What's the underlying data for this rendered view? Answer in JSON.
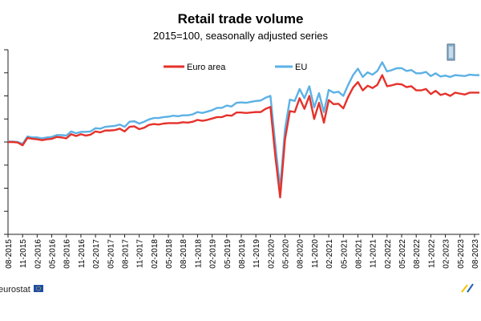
{
  "chart_data": {
    "type": "line",
    "title": "Retail trade volume",
    "subtitle": "2015=100, seasonally adjusted series",
    "xlabel": "",
    "ylabel": "",
    "x": [
      "08-2015",
      "09-2015",
      "10-2015",
      "11-2015",
      "12-2015",
      "01-2016",
      "02-2016",
      "03-2016",
      "04-2016",
      "05-2016",
      "06-2016",
      "07-2016",
      "08-2016",
      "09-2016",
      "10-2016",
      "11-2016",
      "12-2016",
      "01-2017",
      "02-2017",
      "03-2017",
      "04-2017",
      "05-2017",
      "06-2017",
      "07-2017",
      "08-2017",
      "09-2017",
      "10-2017",
      "11-2017",
      "12-2017",
      "01-2018",
      "02-2018",
      "03-2018",
      "04-2018",
      "05-2018",
      "06-2018",
      "07-2018",
      "08-2018",
      "09-2018",
      "10-2018",
      "11-2018",
      "12-2018",
      "01-2019",
      "02-2019",
      "03-2019",
      "04-2019",
      "05-2019",
      "06-2019",
      "07-2019",
      "08-2019",
      "09-2019",
      "10-2019",
      "11-2019",
      "12-2019",
      "01-2020",
      "02-2020",
      "03-2020",
      "04-2020",
      "05-2020",
      "06-2020",
      "07-2020",
      "08-2020",
      "09-2020",
      "10-2020",
      "11-2020",
      "12-2020",
      "01-2021",
      "02-2021",
      "03-2021",
      "04-2021",
      "05-2021",
      "06-2021",
      "07-2021",
      "08-2021",
      "09-2021",
      "10-2021",
      "11-2021",
      "12-2021",
      "01-2022",
      "02-2022",
      "03-2022",
      "04-2022",
      "05-2022",
      "06-2022",
      "07-2022",
      "08-2022",
      "09-2022",
      "10-2022",
      "11-2022",
      "12-2022",
      "01-2023",
      "02-2023",
      "03-2023",
      "04-2023",
      "05-2023",
      "06-2023",
      "07-2023",
      "08-2023",
      "09-2023"
    ],
    "x_tick_labels": [
      "08-2015",
      "11-2015",
      "02-2016",
      "05-2016",
      "08-2016",
      "11-2016",
      "02-2017",
      "05-2017",
      "08-2017",
      "11-2017",
      "02-2018",
      "05-2018",
      "08-2018",
      "11-2018",
      "02-2019",
      "05-2019",
      "08-2019",
      "11-2019",
      "02-2020",
      "05-2020",
      "08-2020",
      "11-2020",
      "02-2021",
      "05-2021",
      "08-2021",
      "11-2021",
      "02-2022",
      "05-2022",
      "08-2022",
      "11-2022",
      "02-2023",
      "05-2023",
      "08-2023"
    ],
    "ylim": [
      80,
      120
    ],
    "y_tick_step": 5,
    "grid": false,
    "legend_position": "top-center",
    "series": [
      {
        "name": "Euro area",
        "color": "#e5322b",
        "values": [
          100.0,
          100.0,
          99.9,
          99.3,
          100.9,
          100.7,
          100.6,
          100.4,
          100.6,
          100.7,
          101.1,
          101.0,
          100.8,
          101.7,
          101.3,
          101.7,
          101.4,
          101.6,
          102.3,
          102.1,
          102.5,
          102.5,
          102.6,
          102.9,
          102.3,
          103.3,
          103.4,
          102.8,
          103.1,
          103.7,
          103.9,
          103.8,
          104.0,
          104.1,
          104.1,
          104.1,
          104.3,
          104.2,
          104.4,
          104.8,
          104.6,
          104.8,
          105.1,
          105.4,
          105.4,
          105.8,
          105.7,
          106.4,
          106.4,
          106.3,
          106.4,
          106.5,
          106.5,
          107.2,
          107.6,
          97.0,
          88.0,
          100.6,
          106.7,
          106.5,
          109.5,
          107.2,
          110.0,
          105.0,
          108.5,
          104.2,
          109.1,
          108.2,
          108.3,
          107.3,
          109.8,
          111.8,
          113.0,
          111.2,
          112.2,
          111.7,
          112.4,
          114.5,
          112.1,
          112.3,
          112.6,
          112.5,
          111.9,
          112.1,
          111.2,
          111.2,
          111.5,
          110.4,
          111.1,
          110.2,
          110.5,
          110.0,
          110.7,
          110.5,
          110.3,
          110.7,
          110.7,
          110.7
        ]
      },
      {
        "name": "EU",
        "color": "#5cb1e5",
        "values": [
          100.1,
          100.1,
          100.0,
          99.6,
          101.2,
          101.0,
          101.0,
          100.8,
          101.0,
          101.1,
          101.5,
          101.5,
          101.4,
          102.3,
          101.9,
          102.2,
          102.2,
          102.3,
          103.0,
          102.9,
          103.3,
          103.4,
          103.5,
          103.8,
          103.3,
          104.4,
          104.5,
          104.0,
          104.4,
          104.9,
          105.2,
          105.2,
          105.4,
          105.5,
          105.7,
          105.6,
          105.8,
          105.8,
          106.0,
          106.5,
          106.3,
          106.6,
          106.9,
          107.4,
          107.4,
          107.9,
          107.7,
          108.5,
          108.6,
          108.5,
          108.7,
          108.9,
          109.0,
          109.6,
          110.0,
          99.5,
          90.0,
          102.8,
          109.2,
          108.9,
          111.5,
          109.5,
          112.1,
          107.5,
          110.6,
          106.5,
          111.3,
          110.7,
          110.9,
          110.0,
          112.4,
          114.5,
          115.9,
          114.1,
          115.1,
          114.6,
          115.4,
          117.3,
          115.3,
          115.6,
          116.0,
          116.0,
          115.4,
          115.6,
          114.9,
          114.9,
          115.2,
          114.3,
          114.9,
          114.2,
          114.4,
          114.1,
          114.5,
          114.4,
          114.3,
          114.6,
          114.5,
          114.5
        ]
      }
    ]
  },
  "footer": {
    "source_label": "eurostat"
  }
}
